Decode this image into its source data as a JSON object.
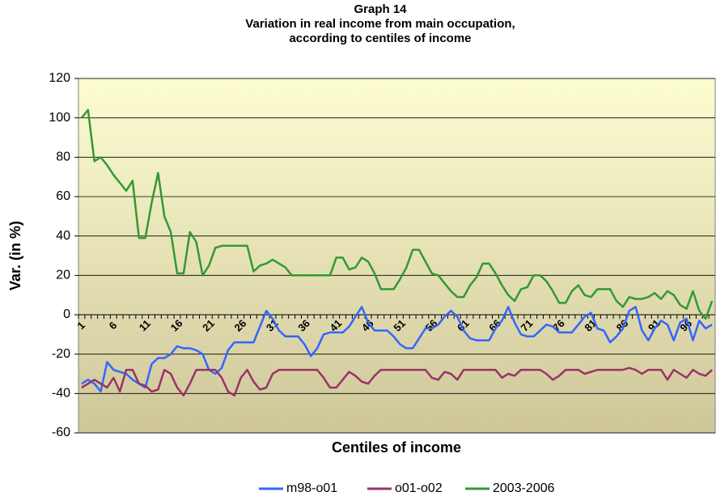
{
  "chart_data": {
    "type": "line",
    "title": [
      "Graph 14",
      "Variation in real income from main occupation,",
      "according to centiles of income"
    ],
    "x_label": "Centiles of income",
    "y_label": "Var. (in %)",
    "categories": [
      1,
      null,
      null,
      null,
      null,
      6,
      null,
      null,
      null,
      null,
      11,
      null,
      null,
      null,
      null,
      16,
      null,
      null,
      null,
      null,
      21,
      null,
      null,
      null,
      null,
      26,
      null,
      null,
      null,
      null,
      31,
      null,
      null,
      null,
      null,
      36,
      null,
      null,
      null,
      null,
      41,
      null,
      null,
      null,
      null,
      46,
      null,
      null,
      null,
      null,
      51,
      null,
      null,
      null,
      null,
      56,
      null,
      null,
      null,
      null,
      61,
      null,
      null,
      null,
      null,
      66,
      null,
      null,
      null,
      null,
      71,
      null,
      null,
      null,
      null,
      76,
      null,
      null,
      null,
      null,
      81,
      null,
      null,
      null,
      null,
      86,
      null,
      null,
      null,
      null,
      91,
      null,
      null,
      null,
      null,
      96,
      null,
      null,
      null,
      null
    ],
    "series": [
      {
        "name": "m98-o01",
        "color": "#3366ff",
        "values": [
          -35,
          -33,
          -35,
          -39,
          -24,
          -28,
          -29,
          -30,
          -33,
          -35,
          -37,
          -25,
          -22,
          -22,
          -20,
          -16,
          -17,
          -17,
          -18,
          -20,
          -28,
          -30,
          -27,
          -18,
          -14,
          -14,
          -14,
          -14,
          -6,
          2,
          -2,
          -8,
          -11,
          -11,
          -11,
          -15,
          -21,
          -17,
          -10,
          -9,
          -9,
          -9,
          -6,
          -1,
          4,
          -4,
          -8,
          -8,
          -8,
          -11,
          -15,
          -17,
          -17,
          -12,
          -7,
          -7,
          -5,
          -1,
          2,
          -1,
          -8,
          -12,
          -13,
          -13,
          -13,
          -7,
          -3,
          4,
          -4,
          -10,
          -11,
          -11,
          -8,
          -5,
          -6,
          -9,
          -9,
          -9,
          -5,
          -1,
          1,
          -7,
          -8,
          -14,
          -11,
          -7,
          2,
          4,
          -8,
          -13,
          -7,
          -3,
          -5,
          -13,
          -4,
          -2,
          -13,
          -3,
          -7,
          -5
        ]
      },
      {
        "name": "o01-o02",
        "color": "#993366",
        "values": [
          -37,
          -35,
          -33,
          -35,
          -37,
          -32,
          -39,
          -28,
          -28,
          -35,
          -36,
          -39,
          -38,
          -28,
          -30,
          -37,
          -41,
          -35,
          -28,
          -28,
          -28,
          -28,
          -32,
          -39,
          -41,
          -32,
          -28,
          -34,
          -38,
          -37,
          -30,
          -28,
          -28,
          -28,
          -28,
          -28,
          -28,
          -28,
          -32,
          -37,
          -37,
          -33,
          -29,
          -31,
          -34,
          -35,
          -31,
          -28,
          -28,
          -28,
          -28,
          -28,
          -28,
          -28,
          -28,
          -32,
          -33,
          -29,
          -30,
          -33,
          -28,
          -28,
          -28,
          -28,
          -28,
          -28,
          -32,
          -30,
          -31,
          -28,
          -28,
          -28,
          -28,
          -30,
          -33,
          -31,
          -28,
          -28,
          -28,
          -30,
          -29,
          -28,
          -28,
          -28,
          -28,
          -28,
          -27,
          -28,
          -30,
          -28,
          -28,
          -28,
          -33,
          -28,
          -30,
          -32,
          -28,
          -30,
          -31,
          -28
        ]
      },
      {
        "name": "2003-2006",
        "color": "#339933",
        "values": [
          100,
          104,
          78,
          80,
          76,
          71,
          67,
          63,
          68,
          39,
          39,
          57,
          72,
          50,
          42,
          21,
          21,
          42,
          37,
          20,
          25,
          34,
          35,
          35,
          35,
          35,
          35,
          22,
          25,
          26,
          28,
          26,
          24,
          20,
          20,
          20,
          20,
          20,
          20,
          20,
          29,
          29,
          23,
          24,
          29,
          27,
          21,
          13,
          13,
          13,
          18,
          24,
          33,
          33,
          27,
          21,
          20,
          16,
          12,
          9,
          9,
          15,
          19,
          26,
          26,
          21,
          15,
          10,
          7,
          13,
          14,
          20,
          20,
          17,
          12,
          6,
          6,
          12,
          15,
          10,
          9,
          13,
          13,
          13,
          7,
          4,
          9,
          8,
          8,
          9,
          11,
          8,
          12,
          10,
          5,
          3,
          12,
          2,
          -2,
          7
        ]
      }
    ],
    "ylim": [
      -60,
      120
    ],
    "yticks": [
      -60,
      -40,
      -20,
      0,
      20,
      40,
      60,
      80,
      100,
      120
    ],
    "grid": true
  }
}
